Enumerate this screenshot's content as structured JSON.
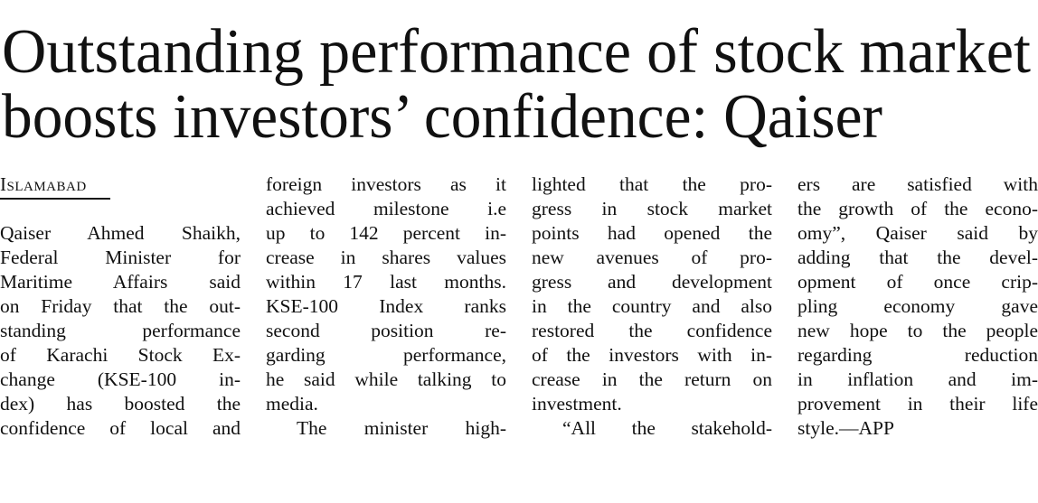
{
  "headline": {
    "lines": [
      "Outstanding performance of stock market",
      "boosts investors’ confidence: Qaiser"
    ]
  },
  "dateline": "Islamabad",
  "columns": [
    [
      "Qaiser Ahmed Shaikh,",
      "Federal Minister for",
      "Maritime Affairs said",
      "on Friday that the out-",
      "standing performance",
      "of Karachi Stock Ex-",
      "change (KSE-100 in-",
      "dex) has boosted the",
      "confidence of local and"
    ],
    [
      "foreign investors as it",
      "achieved milestone i.e",
      "up to 142 percent in-",
      "crease in shares values",
      "within 17 last months.",
      "KSE-100 Index ranks",
      "second position re-",
      "garding performance,",
      "he said while talking to",
      "media.",
      "The minister high-"
    ],
    [
      "lighted that the pro-",
      "gress in stock market",
      "points had opened the",
      "new avenues of pro-",
      "gress and development",
      "in the country and also",
      "restored the confidence",
      "of the investors with in-",
      "crease in the return on",
      "investment.",
      "“All the stakehold-"
    ],
    [
      "ers are satisfied with",
      "the growth of the econo-",
      "omy”, Qaiser said by",
      "adding that the devel-",
      "opment of once crip-",
      "pling economy gave",
      "new hope to the people",
      "regarding reduction",
      "in inflation and im-",
      "provement in their life",
      "style.—APP"
    ]
  ]
}
